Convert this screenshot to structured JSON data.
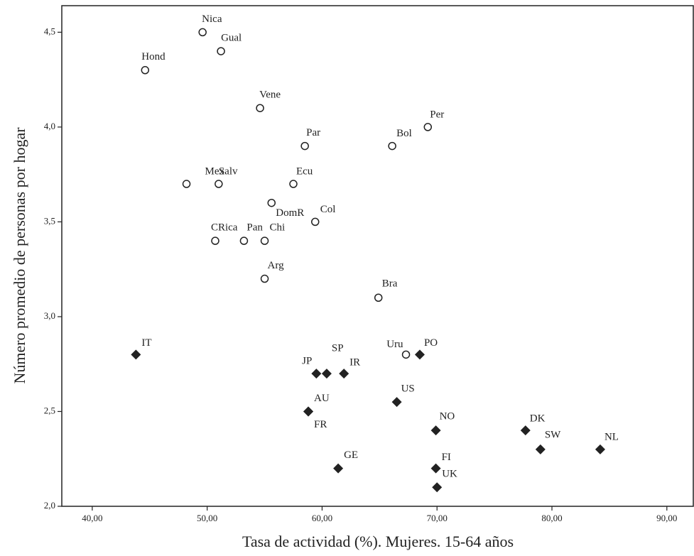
{
  "chart_data": {
    "type": "scatter",
    "x_label": "Tasa de actividad (%). Mujeres. 15-64 años",
    "y_label": "Número promedio de personas por hogar",
    "xlim": [
      37.35,
      92.3
    ],
    "ylim": [
      2.0,
      4.64
    ],
    "xticks": [
      {
        "value": 40,
        "label": "40,00"
      },
      {
        "value": 50,
        "label": "50,00"
      },
      {
        "value": 60,
        "label": "60,00"
      },
      {
        "value": 70,
        "label": "70,00"
      },
      {
        "value": 80,
        "label": "80,00"
      },
      {
        "value": 90,
        "label": "90,00"
      }
    ],
    "yticks": [
      {
        "value": 2.0,
        "label": "2,0"
      },
      {
        "value": 2.5,
        "label": "2,5"
      },
      {
        "value": 3.0,
        "label": "3,0"
      },
      {
        "value": 3.5,
        "label": "3,5"
      },
      {
        "value": 4.0,
        "label": "4,0"
      },
      {
        "value": 4.5,
        "label": "4,5"
      }
    ],
    "series": [
      {
        "marker": "circle",
        "color": "#222222",
        "labels": [
          "Nica",
          "Gual",
          "Hond",
          "Vene",
          "Par",
          "Bol",
          "Per",
          "Mex",
          "Salv",
          "Ecu",
          "DomR",
          "Col",
          "CRica",
          "Pan",
          "Chi",
          "Arg",
          "Bra",
          "Uru"
        ],
        "x": [
          49.6,
          51.2,
          44.6,
          54.6,
          58.5,
          66.1,
          69.2,
          48.2,
          51.0,
          57.5,
          55.6,
          59.4,
          50.7,
          53.2,
          55.0,
          55.0,
          64.9,
          67.3
        ],
        "y": [
          4.5,
          4.4,
          4.3,
          4.1,
          3.9,
          3.9,
          4.0,
          3.7,
          3.7,
          3.7,
          3.6,
          3.5,
          3.4,
          3.4,
          3.4,
          3.2,
          3.1,
          2.8
        ]
      },
      {
        "marker": "diamond",
        "color": "#222222",
        "labels": [
          "IT",
          "JP",
          "SP",
          "IR",
          "PO",
          "AU",
          "FR",
          "US",
          "NO",
          "DK",
          "SW",
          "NL",
          "GE",
          "FI",
          "UK"
        ],
        "x": [
          43.8,
          59.5,
          60.4,
          61.9,
          68.5,
          58.8,
          58.8,
          66.5,
          69.9,
          77.7,
          79.0,
          84.2,
          61.4,
          69.9,
          70.0
        ],
        "y": [
          2.8,
          2.7,
          2.7,
          2.7,
          2.8,
          2.5,
          2.5,
          2.55,
          2.4,
          2.4,
          2.3,
          2.3,
          2.2,
          2.2,
          2.1
        ]
      }
    ]
  }
}
